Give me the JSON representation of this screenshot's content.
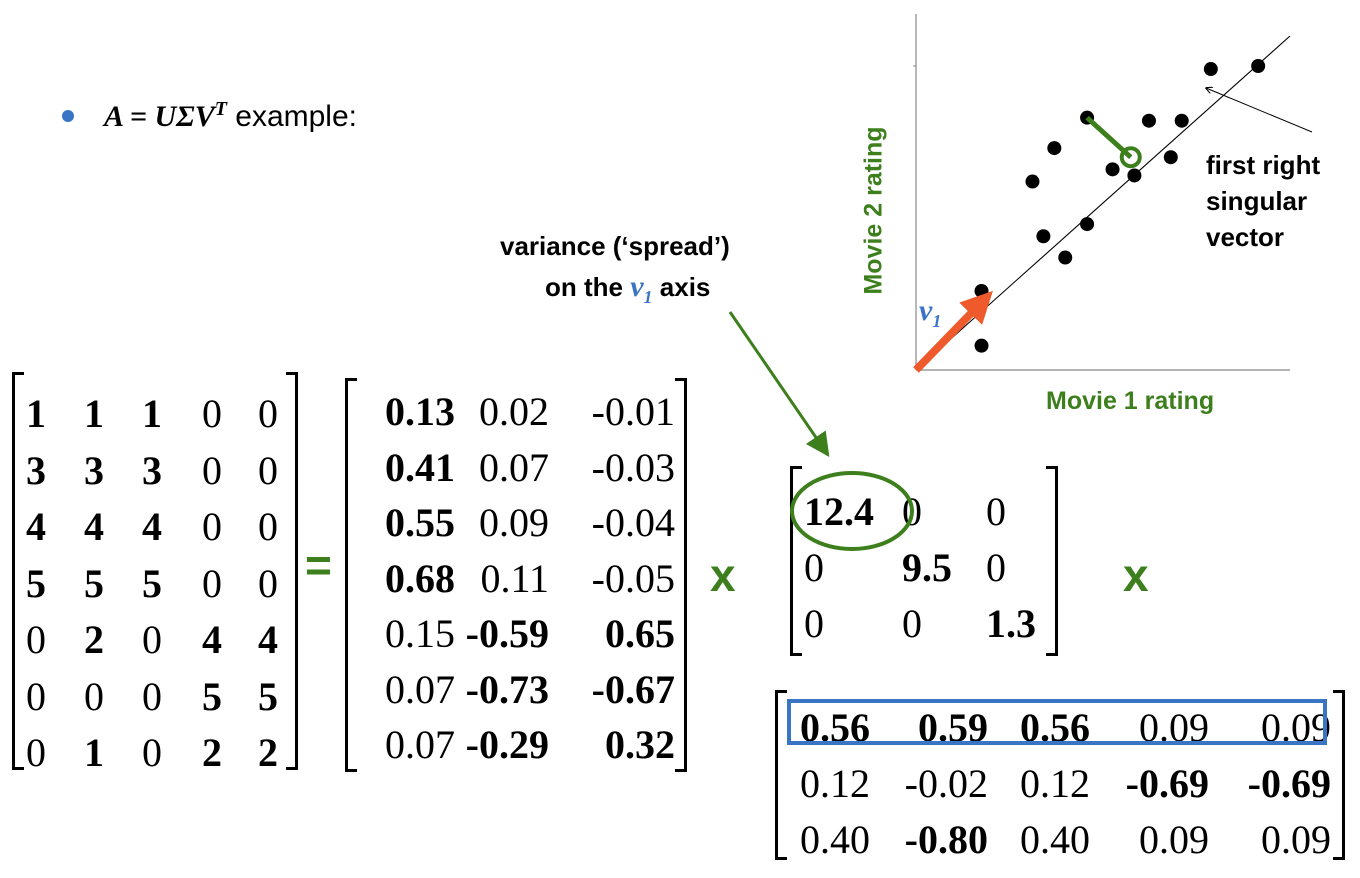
{
  "heading": {
    "math": "A = UΣV",
    "superscript": "T",
    "rest": " example:"
  },
  "annotation": {
    "line1": "variance (‘spread’)",
    "line2_prefix": "on the ",
    "v_symbol": "v",
    "v_subscript": "1",
    "line2_suffix": " axis"
  },
  "operators": {
    "equals": "=",
    "times1": "x",
    "times2": "x"
  },
  "matrix_a": {
    "rows": [
      [
        "1",
        "1",
        "1",
        "0",
        "0"
      ],
      [
        "3",
        "3",
        "3",
        "0",
        "0"
      ],
      [
        "4",
        "4",
        "4",
        "0",
        "0"
      ],
      [
        "5",
        "5",
        "5",
        "0",
        "0"
      ],
      [
        "0",
        "2",
        "0",
        "4",
        "4"
      ],
      [
        "0",
        "0",
        "0",
        "5",
        "5"
      ],
      [
        "0",
        "1",
        "0",
        "2",
        "2"
      ]
    ],
    "bold": [
      [
        1,
        1,
        1,
        0,
        0
      ],
      [
        1,
        1,
        1,
        0,
        0
      ],
      [
        1,
        1,
        1,
        0,
        0
      ],
      [
        1,
        1,
        1,
        0,
        0
      ],
      [
        0,
        1,
        0,
        1,
        1
      ],
      [
        0,
        0,
        0,
        1,
        1
      ],
      [
        0,
        1,
        0,
        1,
        1
      ]
    ]
  },
  "matrix_u": {
    "rows": [
      [
        "0.13",
        "0.02",
        "-0.01"
      ],
      [
        "0.41",
        "0.07",
        "-0.03"
      ],
      [
        "0.55",
        "0.09",
        "-0.04"
      ],
      [
        "0.68",
        "0.11",
        "-0.05"
      ],
      [
        "0.15",
        "-0.59",
        "0.65"
      ],
      [
        "0.07",
        "-0.73",
        "-0.67"
      ],
      [
        "0.07",
        "-0.29",
        "0.32"
      ]
    ],
    "bold": [
      [
        1,
        0,
        0
      ],
      [
        1,
        0,
        0
      ],
      [
        1,
        0,
        0
      ],
      [
        1,
        0,
        0
      ],
      [
        0,
        1,
        1
      ],
      [
        0,
        1,
        1
      ],
      [
        0,
        1,
        1
      ]
    ]
  },
  "matrix_sigma": {
    "rows": [
      [
        "12.4",
        "0",
        "0"
      ],
      [
        "0",
        "9.5",
        "0"
      ],
      [
        "0",
        "0",
        "1.3"
      ]
    ],
    "bold": [
      [
        1,
        0,
        0
      ],
      [
        0,
        1,
        0
      ],
      [
        0,
        0,
        1
      ]
    ],
    "highlight_color": "#3d7f1d"
  },
  "matrix_vt": {
    "rows": [
      [
        "0.56",
        "0.59",
        "0.56",
        "0.09",
        "0.09"
      ],
      [
        "0.12",
        "-0.02",
        "0.12",
        "-0.69",
        "-0.69"
      ],
      [
        "0.40",
        "-0.80",
        "0.40",
        "0.09",
        "0.09"
      ]
    ],
    "bold": [
      [
        1,
        1,
        1,
        0,
        0
      ],
      [
        0,
        0,
        0,
        1,
        1
      ],
      [
        0,
        1,
        0,
        0,
        0
      ]
    ],
    "highlight_color": "#3a74c4"
  },
  "chart_data": {
    "type": "scatter",
    "xlabel": "Movie 1 rating",
    "ylabel": "Movie 2 rating",
    "xlim": [
      0,
      1
    ],
    "ylim": [
      0,
      1
    ],
    "points": [
      {
        "x": 0.18,
        "y": 0.26
      },
      {
        "x": 0.18,
        "y": 0.08
      },
      {
        "x": 0.35,
        "y": 0.44
      },
      {
        "x": 0.41,
        "y": 0.37
      },
      {
        "x": 0.32,
        "y": 0.62
      },
      {
        "x": 0.38,
        "y": 0.73
      },
      {
        "x": 0.47,
        "y": 0.48
      },
      {
        "x": 0.54,
        "y": 0.66
      },
      {
        "x": 0.6,
        "y": 0.64
      },
      {
        "x": 0.7,
        "y": 0.7
      },
      {
        "x": 0.64,
        "y": 0.82
      },
      {
        "x": 0.73,
        "y": 0.82
      },
      {
        "x": 0.81,
        "y": 0.99
      },
      {
        "x": 0.94,
        "y": 1.0
      },
      {
        "x": 0.47,
        "y": 0.83
      }
    ],
    "projected_point": {
      "from": {
        "x": 0.47,
        "y": 0.83
      },
      "to": {
        "x": 0.59,
        "y": 0.7
      }
    },
    "vector_label_symbol": "v",
    "vector_label_subscript": "1",
    "vector_annotation": [
      "first right",
      "singular",
      "vector"
    ],
    "colors": {
      "points": "#000000",
      "axis_line": "#000000",
      "vector": "#ee5a2c",
      "projection": "#3d7f1d"
    }
  },
  "colors": {
    "accent_green": "#3d7f1d",
    "accent_blue": "#3a74c4",
    "vector_orange": "#ee5a2c"
  }
}
